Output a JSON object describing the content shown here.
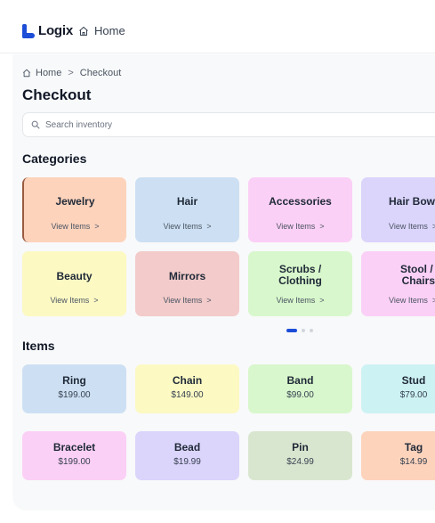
{
  "app": {
    "name": "Logix",
    "brand_color": "#1d4ed8"
  },
  "topnav": {
    "home_label": "Home"
  },
  "breadcrumb": {
    "home": "Home",
    "separator": ">",
    "current": "Checkout"
  },
  "page": {
    "title": "Checkout"
  },
  "search": {
    "placeholder": "Search inventory",
    "value": ""
  },
  "categories": {
    "heading": "Categories",
    "items": [
      {
        "name": "Jewelry",
        "link": "View Items",
        "color": "#fdd3bc",
        "selected": true
      },
      {
        "name": "Hair",
        "link": "View Items",
        "color": "#cde0f3"
      },
      {
        "name": "Accessories",
        "link": "View Items",
        "color": "#fbd0f6"
      },
      {
        "name": "Hair Bows",
        "link": "View Items",
        "color": "#dbd4fb"
      },
      {
        "name": "Beauty",
        "link": "View Items",
        "color": "#fcf9c3"
      },
      {
        "name": "Mirrors",
        "link": "View Items",
        "color": "#f2cbca"
      },
      {
        "name": "Scrubs / Clothing",
        "name_lines": [
          "Scrubs /",
          "Clothing"
        ],
        "link": "View Items",
        "color": "#d8f7cc"
      },
      {
        "name": "Stool / Chairs",
        "name_lines": [
          "Stool /",
          "Chairs"
        ],
        "link": "View Items",
        "color": "#fbd0f6"
      }
    ],
    "pagination": {
      "pages": 3,
      "active": 1
    }
  },
  "items": {
    "heading": "Items",
    "list": [
      {
        "name": "Ring",
        "price": "$199.00",
        "color": "#cde0f3"
      },
      {
        "name": "Chain",
        "price": "$149.00",
        "color": "#fcf9c3"
      },
      {
        "name": "Band",
        "price": "$99.00",
        "color": "#d8f7cc"
      },
      {
        "name": "Stud",
        "price": "$79.00",
        "color": "#cdf2f4"
      },
      {
        "name": "Bracelet",
        "price": "$199.00",
        "color": "#fbd0f6"
      },
      {
        "name": "Bead",
        "price": "$19.99",
        "color": "#dbd4fb"
      },
      {
        "name": "Pin",
        "price": "$24.99",
        "color": "#d9e6cf"
      },
      {
        "name": "Tag",
        "price": "$14.99",
        "color": "#fdd3bc"
      }
    ]
  },
  "icons": {
    "logo": "logix-logo-icon",
    "home": "home-icon",
    "search": "search-icon",
    "chevron": "chevron-right-icon"
  }
}
